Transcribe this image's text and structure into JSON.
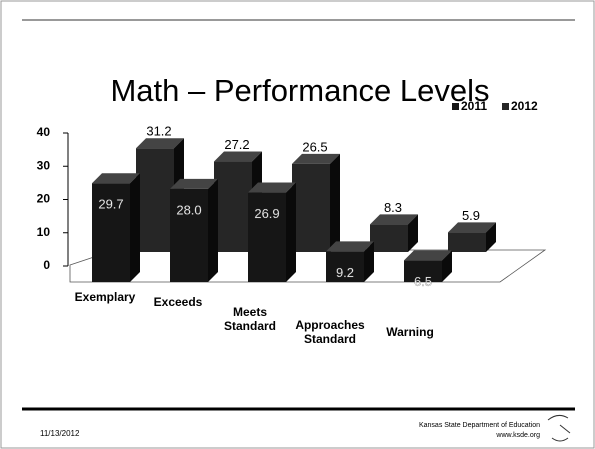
{
  "chart_data": {
    "type": "bar3d",
    "title": "Math – Performance Levels",
    "categories": [
      "Exemplary",
      "Exceeds",
      "Meets Standard",
      "Approaches Standard",
      "Warning"
    ],
    "series": [
      {
        "name": "2011",
        "color": "#161616",
        "values": [
          29.7,
          28.0,
          26.9,
          9.2,
          6.5
        ],
        "value_labels": [
          "29.7",
          "28.0",
          "26.9",
          "9.2",
          "6.5"
        ]
      },
      {
        "name": "2012",
        "color": "#262626",
        "values": [
          31.2,
          27.2,
          26.5,
          8.3,
          5.9
        ],
        "value_labels": [
          "31.2",
          "27.2",
          "26.5",
          "8.3",
          "5.9"
        ]
      }
    ],
    "ylim": [
      0,
      40
    ],
    "yticks": [
      0,
      10,
      20,
      30,
      40
    ],
    "legend": "top-right"
  },
  "footer": {
    "date": "11/13/2012",
    "org": "Kansas State Department of Education",
    "url": "www.ksde.org"
  }
}
